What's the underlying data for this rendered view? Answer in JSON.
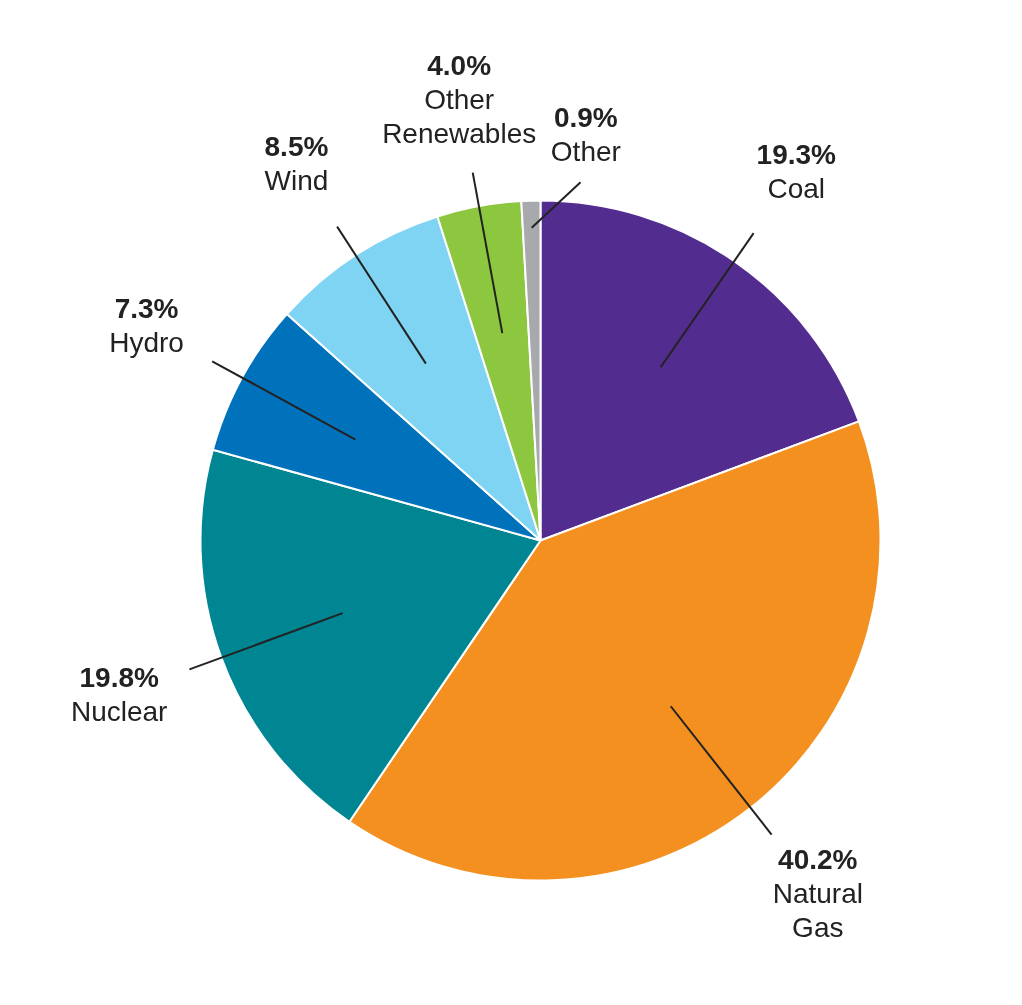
{
  "chart_data": {
    "type": "pie",
    "categories": [
      "Coal",
      "Natural\nGas",
      "Nuclear",
      "Hydro",
      "Wind",
      "Other\nRenewables",
      "Other"
    ],
    "values": [
      19.3,
      40.2,
      19.8,
      7.3,
      8.5,
      4.0,
      0.9
    ],
    "colors": [
      "#522d8f",
      "#f39020",
      "#008593",
      "#0072bc",
      "#7fd3f3",
      "#8dc63f",
      "#a7a9ac"
    ],
    "value_labels": [
      "19.3%",
      "40.2%",
      "19.8%",
      "7.3%",
      "8.5%",
      "4.0%",
      "0.9%"
    ]
  }
}
